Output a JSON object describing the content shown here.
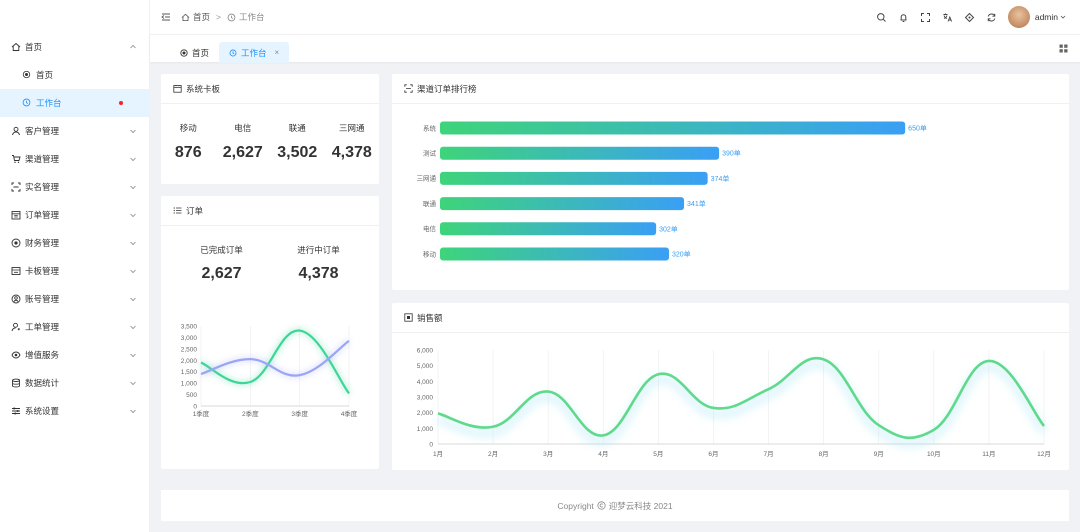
{
  "sidebar": {
    "items": [
      {
        "label": "首页",
        "icon": "home-icon",
        "expanded": true,
        "children": [
          {
            "label": "首页",
            "icon": "dot-circle-icon",
            "active": false
          },
          {
            "label": "工作台",
            "icon": "clock-icon",
            "active": true
          }
        ]
      },
      {
        "label": "客户管理",
        "icon": "user-icon"
      },
      {
        "label": "渠道管理",
        "icon": "cart-icon"
      },
      {
        "label": "实名管理",
        "icon": "scan-icon"
      },
      {
        "label": "订单管理",
        "icon": "calendar-icon"
      },
      {
        "label": "财务管理",
        "icon": "finance-icon"
      },
      {
        "label": "卡板管理",
        "icon": "card-icon"
      },
      {
        "label": "账号管理",
        "icon": "account-icon"
      },
      {
        "label": "工单管理",
        "icon": "worker-icon"
      },
      {
        "label": "增值服务",
        "icon": "eye-icon"
      },
      {
        "label": "数据统计",
        "icon": "database-icon"
      },
      {
        "label": "系统设置",
        "icon": "sliders-icon"
      }
    ]
  },
  "header": {
    "breadcrumb": [
      "首页",
      "工作台"
    ],
    "separator": ">",
    "username": "admin"
  },
  "tabs": [
    {
      "label": "首页",
      "active": false
    },
    {
      "label": "工作台",
      "active": true,
      "close": "×"
    }
  ],
  "kanban": {
    "title": "系统卡板",
    "items": [
      {
        "label": "移动",
        "value": "876"
      },
      {
        "label": "电信",
        "value": "2,627"
      },
      {
        "label": "联通",
        "value": "3,502"
      },
      {
        "label": "三网通",
        "value": "4,378"
      }
    ]
  },
  "orders": {
    "title": "订单",
    "items": [
      {
        "label": "已完成订单",
        "value": "2,627"
      },
      {
        "label": "进行中订单",
        "value": "4,378"
      }
    ]
  },
  "rank": {
    "title": "渠道订单排行榜"
  },
  "sales": {
    "title": "销售额"
  },
  "footer": {
    "copyright": "Copyright",
    "company": "迎梦云科技 2021"
  },
  "chart_data": [
    {
      "id": "orders-chart",
      "type": "line",
      "x": [
        "1季度",
        "2季度",
        "3季度",
        "4季度"
      ],
      "yticks": [
        "0",
        "500",
        "1,000",
        "1,500",
        "2,000",
        "2,500",
        "3,000",
        "3,500"
      ],
      "ylim": [
        0,
        3500
      ],
      "smooth": true,
      "series": [
        {
          "values": [
            1900,
            1050,
            3300,
            550
          ],
          "color": "#3dd598"
        },
        {
          "values": [
            1400,
            2050,
            1350,
            2850
          ],
          "color": "#9aa5f5"
        }
      ]
    },
    {
      "id": "rank-chart",
      "type": "bar",
      "orientation": "horizontal",
      "categories": [
        "系统",
        "测试",
        "三网通",
        "联通",
        "电信",
        "移动"
      ],
      "values": [
        650,
        390,
        374,
        341,
        302,
        320
      ],
      "labels": [
        "650单",
        "390单",
        "374单",
        "341单",
        "302单",
        "320单"
      ],
      "xlim": [
        0,
        830
      ],
      "colors": {
        "start": "#3ed47a",
        "end": "#3a9ff5"
      }
    },
    {
      "id": "sales-chart",
      "type": "line",
      "x": [
        "1月",
        "2月",
        "3月",
        "4月",
        "5月",
        "6月",
        "7月",
        "8月",
        "9月",
        "10月",
        "11月",
        "12月"
      ],
      "yticks": [
        "0",
        "1,000",
        "2,000",
        "3,000",
        "4,000",
        "5,000",
        "6,000"
      ],
      "ylim": [
        0,
        6000
      ],
      "smooth": true,
      "series": [
        {
          "values": [
            1950,
            1100,
            3350,
            550,
            4450,
            2300,
            3500,
            5400,
            1200,
            900,
            5300,
            1150
          ],
          "color": "#5fd98a"
        }
      ]
    }
  ]
}
